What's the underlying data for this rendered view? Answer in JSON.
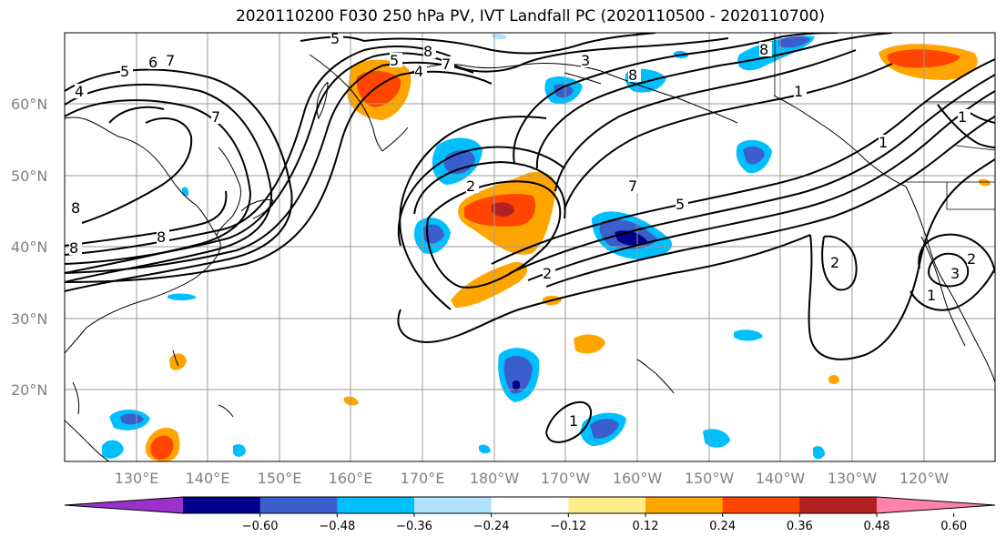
{
  "title": "2020110200 F030 250 hPa PV, IVT Landfall PC (2020110500 - 2020110700)",
  "lat_labels": [
    "60°N",
    "50°N",
    "40°N",
    "30°N",
    "20°N"
  ],
  "lon_labels": [
    "130°E",
    "140°E",
    "150°E",
    "160°E",
    "170°E",
    "180°W",
    "170°W",
    "160°W",
    "150°W",
    "140°W",
    "130°W",
    "120°W"
  ],
  "contour_labels": [
    "1",
    "2",
    "3",
    "4",
    "5",
    "6",
    "7",
    "8"
  ],
  "colorbar": {
    "colors": [
      "#9932cc",
      "#00008b",
      "#3a5fcd",
      "#00bfff",
      "#b0e2ff",
      "#ffffff",
      "#ffec8b",
      "#ffa500",
      "#ff4500",
      "#b22222",
      "#ff82ab"
    ],
    "ticks": [
      "−0.60",
      "−0.48",
      "−0.36",
      "−0.24",
      "−0.12",
      "0.12",
      "0.24",
      "0.36",
      "0.48",
      "0.60"
    ]
  }
}
